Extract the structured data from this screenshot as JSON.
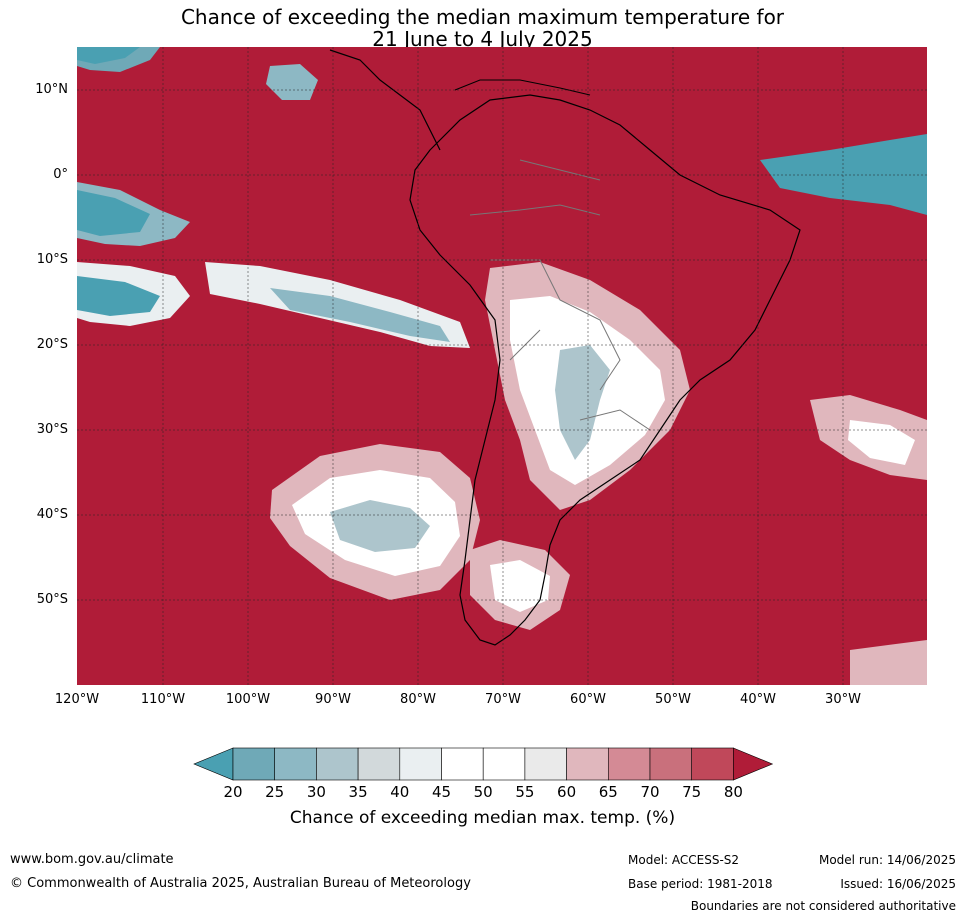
{
  "title": {
    "line1": "Chance of exceeding the median maximum temperature for",
    "line2": "21 June to 4 July 2025"
  },
  "map": {
    "lat_labels": [
      "10°N",
      "0°",
      "10°S",
      "20°S",
      "30°S",
      "40°S",
      "50°S"
    ],
    "lon_labels": [
      "120°W",
      "110°W",
      "100°W",
      "90°W",
      "80°W",
      "70°W",
      "60°W",
      "50°W",
      "40°W",
      "30°W"
    ],
    "colors": {
      "high": "#b01c38",
      "ocean_low": "#4aa0b2"
    }
  },
  "colorbar": {
    "ticks": [
      "20",
      "25",
      "30",
      "35",
      "40",
      "45",
      "50",
      "55",
      "60",
      "65",
      "70",
      "75",
      "80"
    ],
    "colors": [
      "#4aa0b2",
      "#6fa9b7",
      "#8db8c4",
      "#adc5cc",
      "#d2d9db",
      "#eaeff1",
      "#ffffff",
      "#ffffff",
      "#eaeaea",
      "#e0b7bd",
      "#d48a95",
      "#c9707c",
      "#c0485a",
      "#b01c38"
    ],
    "label": "Chance of exceeding median max. temp. (%)"
  },
  "footer": {
    "website": "www.bom.gov.au/climate",
    "copyright": "© Commonwealth of Australia 2025, Australian Bureau of Meteorology",
    "model": "Model: ACCESS-S2",
    "base_period": "Base period: 1981-2018",
    "model_run": "Model run: 14/06/2025",
    "issued": "Issued: 16/06/2025",
    "disclaimer": "Boundaries are not considered authoritative"
  }
}
